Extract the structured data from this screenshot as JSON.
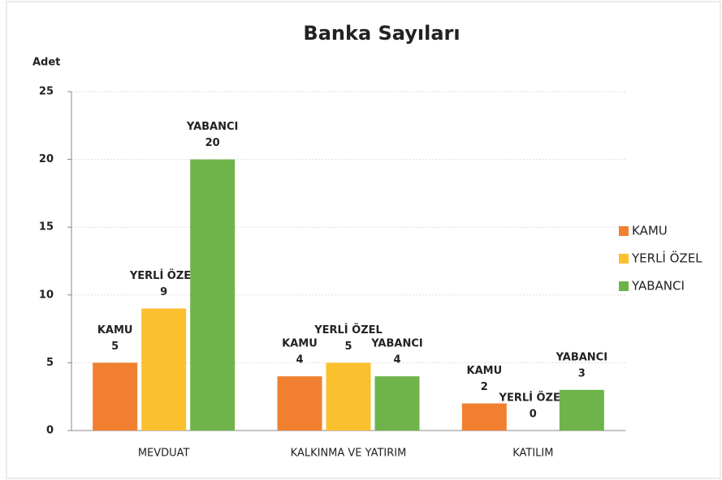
{
  "chart_data": {
    "type": "bar",
    "title": "Banka Sayıları",
    "y_label": "Adet",
    "categories": [
      "MEVDUAT",
      "KALKINMA VE YATIRIM",
      "KATILIM"
    ],
    "series": [
      {
        "name": "KAMU",
        "color": "#f07f2f",
        "values": [
          5,
          4,
          2
        ]
      },
      {
        "name": "YERLİ ÖZEL",
        "color": "#fbc02d",
        "values": [
          9,
          5,
          0
        ]
      },
      {
        "name": "YABANCI",
        "color": "#6fb44a",
        "values": [
          20,
          4,
          3
        ]
      }
    ],
    "ylim": [
      0,
      25
    ],
    "yticks": [
      0,
      5,
      10,
      15,
      20,
      25
    ],
    "grid": true,
    "legend": "right",
    "data_labels": true
  }
}
